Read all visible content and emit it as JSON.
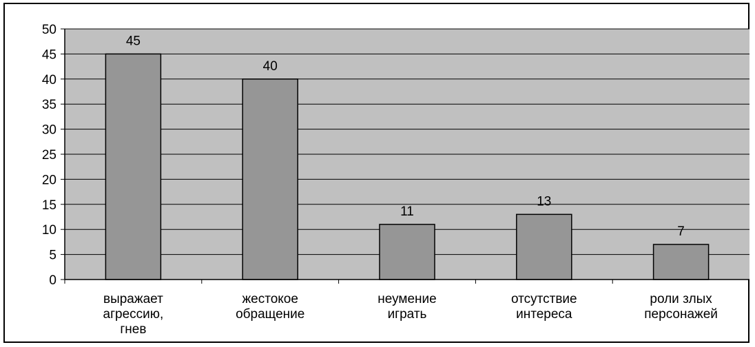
{
  "chart_data": {
    "type": "bar",
    "categories": [
      [
        "выражает",
        "агрессию,",
        "гнев"
      ],
      [
        "жестокое",
        "обращение"
      ],
      [
        "неумение",
        "играть"
      ],
      [
        "отсутствие",
        "интереса"
      ],
      [
        "роли злых",
        "персонажей"
      ]
    ],
    "values": [
      45,
      40,
      11,
      13,
      7
    ],
    "data_labels": [
      "45",
      "40",
      "11",
      "13",
      "7"
    ],
    "y_ticks": [
      "0",
      "5",
      "10",
      "15",
      "20",
      "25",
      "30",
      "35",
      "40",
      "45",
      "50"
    ],
    "ylim": [
      0,
      50
    ],
    "y_tick_step": 5,
    "grid": true,
    "legend": "none",
    "colors": {
      "plot_background": "#c0c0c0",
      "bar_fill": "#969696",
      "bar_stroke": "#000000",
      "gridline": "#000000",
      "axis": "#000000",
      "frame": "#000000"
    }
  }
}
